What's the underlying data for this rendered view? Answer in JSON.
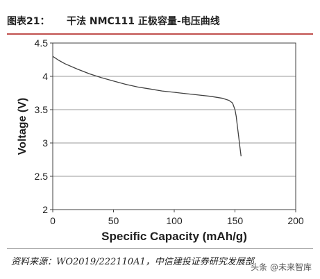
{
  "header": {
    "figure_label": "图表21：",
    "figure_title": "干法 NMC111 正极容量-电压曲线"
  },
  "chart_data": {
    "type": "line",
    "xlabel": "Specific Capacity (mAh/g)",
    "ylabel": "Voltage (V)",
    "xlim": [
      0,
      200
    ],
    "ylim": [
      2,
      4.5
    ],
    "xticks": [
      "0",
      "50",
      "100",
      "150",
      "200"
    ],
    "yticks": [
      "2",
      "2.5",
      "3",
      "3.5",
      "4",
      "4.5"
    ],
    "grid": "horizontal",
    "series": [
      {
        "color": "#404040",
        "x": [
          0,
          5,
          10,
          20,
          30,
          40,
          50,
          60,
          70,
          80,
          90,
          100,
          110,
          120,
          130,
          140,
          145,
          148,
          150,
          151,
          152,
          153,
          154,
          155
        ],
        "y": [
          4.3,
          4.24,
          4.19,
          4.11,
          4.04,
          3.98,
          3.93,
          3.88,
          3.84,
          3.81,
          3.78,
          3.76,
          3.74,
          3.72,
          3.7,
          3.67,
          3.64,
          3.6,
          3.5,
          3.4,
          3.25,
          3.1,
          2.95,
          2.8
        ]
      }
    ]
  },
  "footer": {
    "source": "资料来源：WO2019/222110A1，中信建投证券研究发展部",
    "watermark": "头条 @未来智库"
  }
}
